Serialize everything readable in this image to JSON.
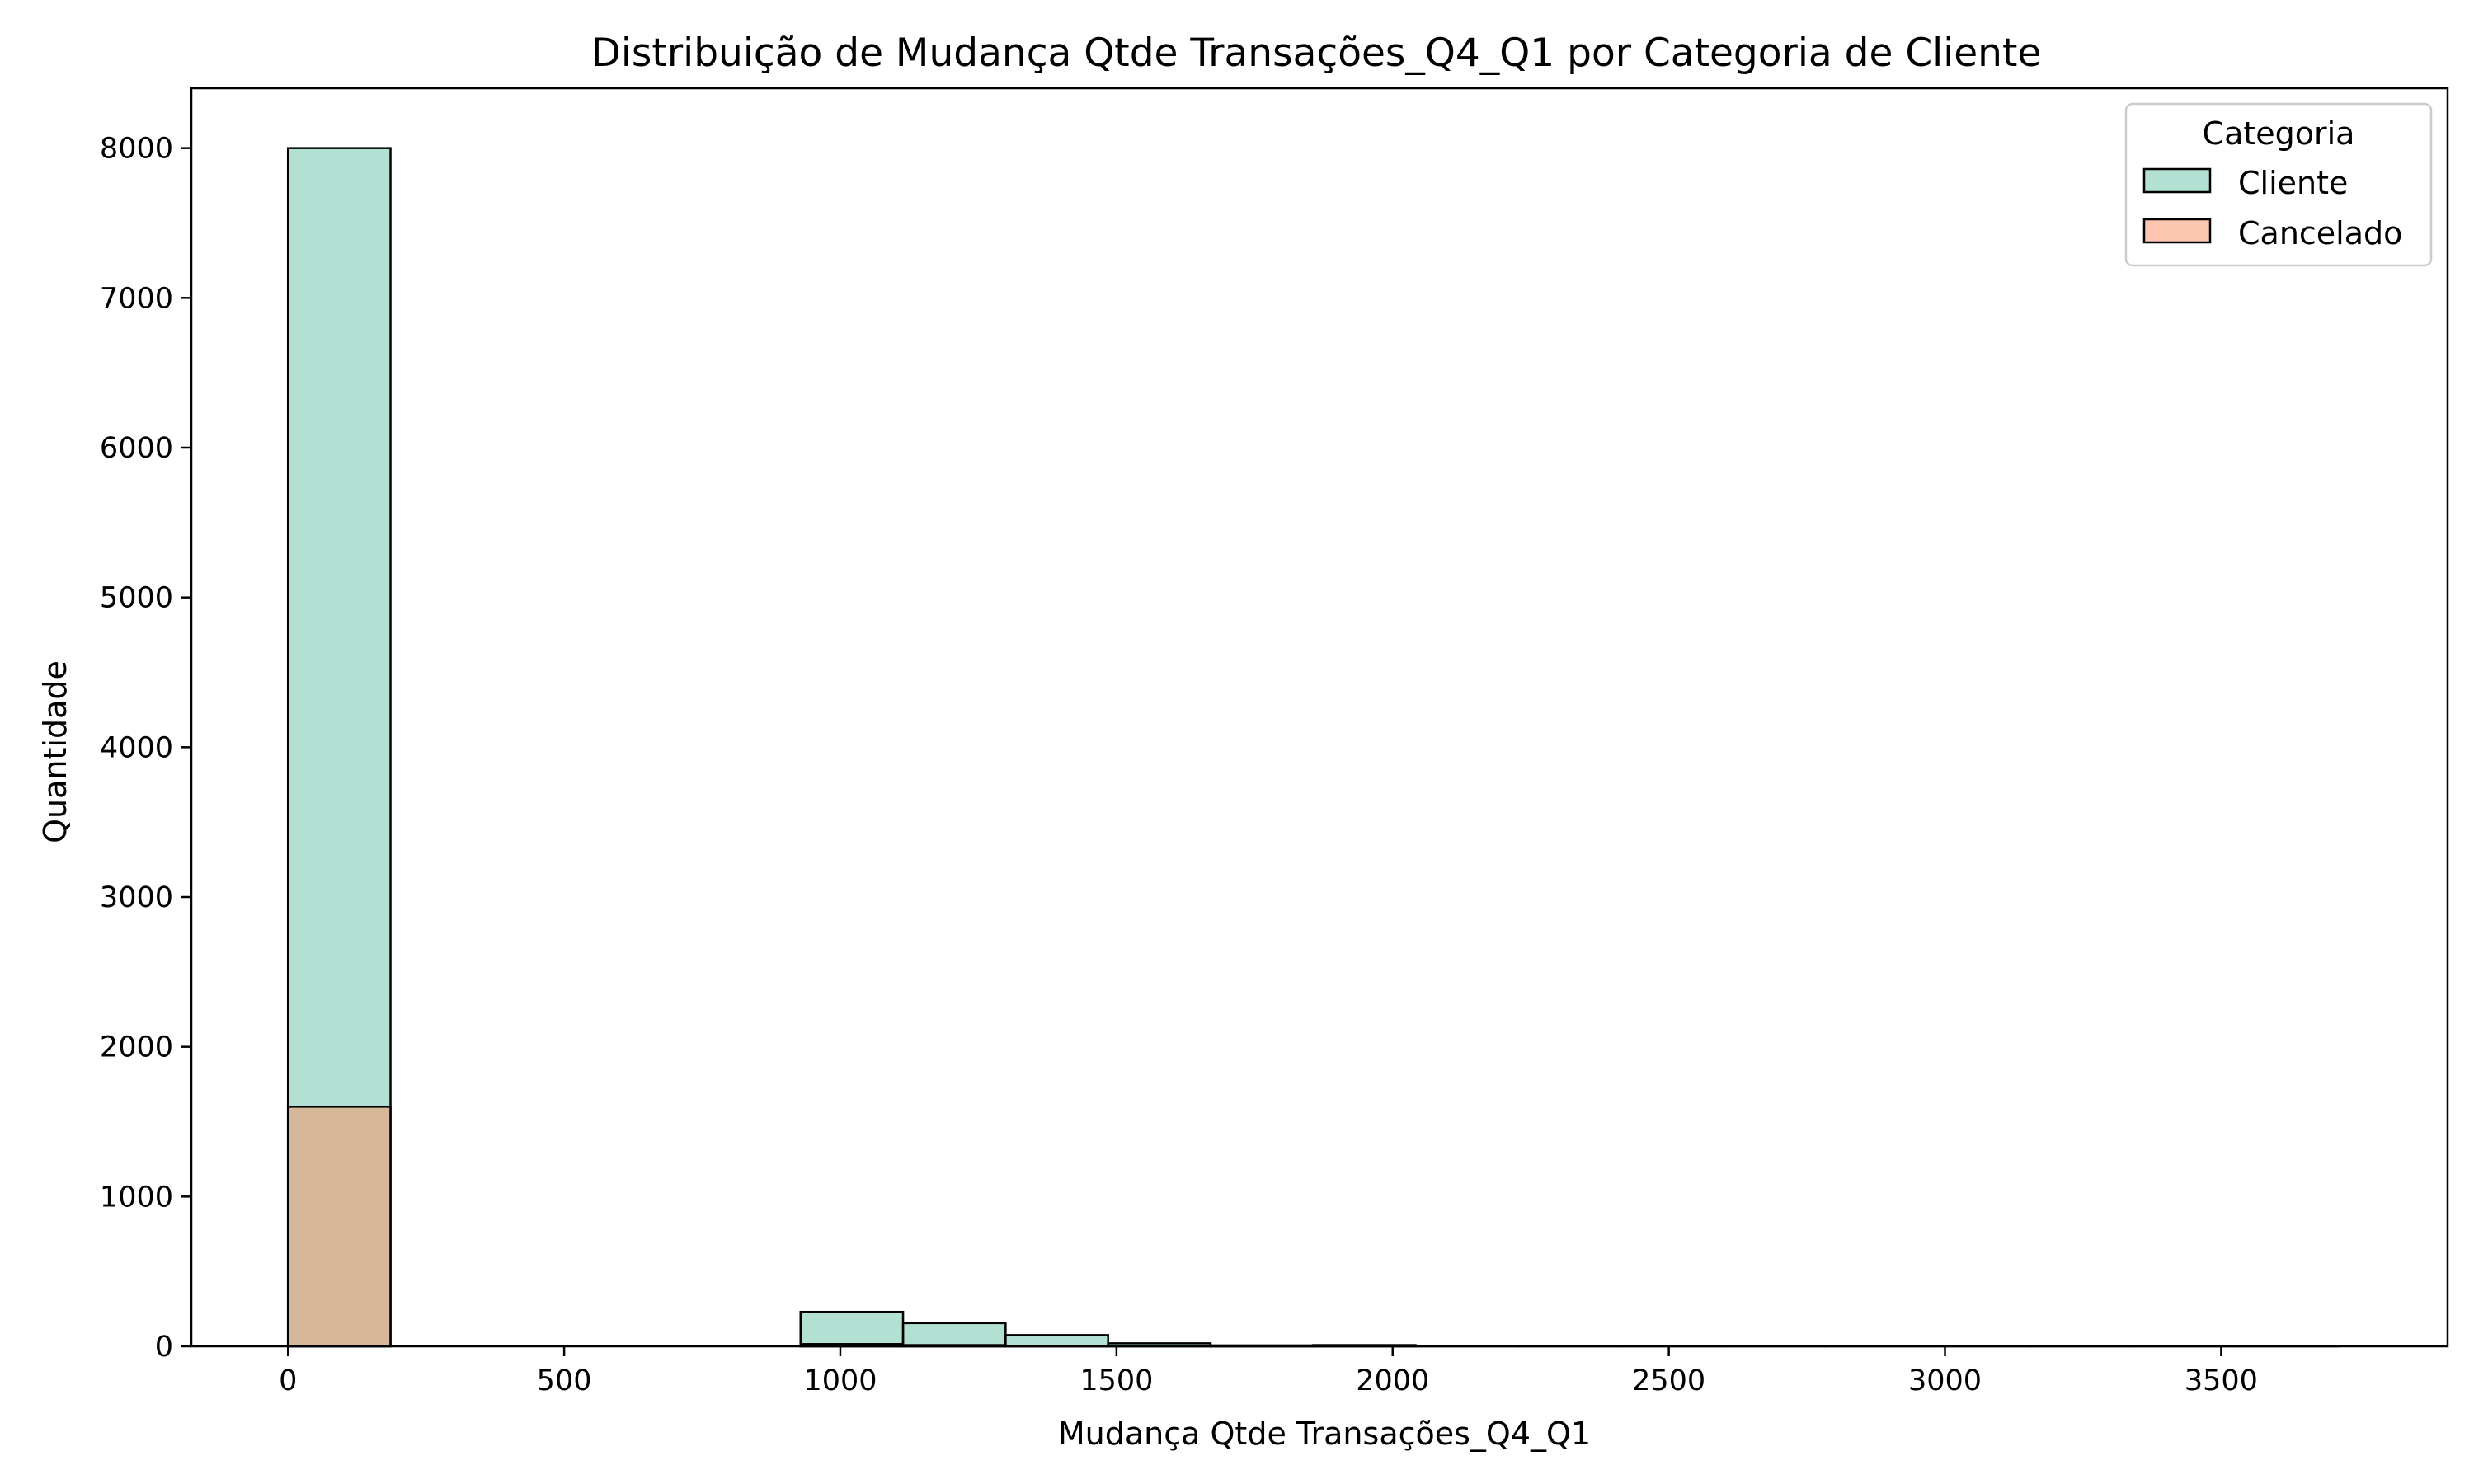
{
  "chart_data": {
    "type": "bar",
    "title": "Distribuição de Mudança Qtde Transações_Q4_Q1 por Categoria de Cliente",
    "xlabel": "Mudança Qtde Transações_Q4_Q1",
    "ylabel": "Quantidade",
    "xlim": [
      -175,
      3910
    ],
    "ylim": [
      0,
      8400
    ],
    "xticks": [
      0,
      500,
      1000,
      1500,
      2000,
      2500,
      3000,
      3500
    ],
    "yticks": [
      0,
      1000,
      2000,
      3000,
      4000,
      5000,
      6000,
      7000,
      8000
    ],
    "grid": false,
    "legend": {
      "title": "Categoria",
      "placement": "top-right",
      "entries": [
        "Cliente",
        "Cancelado"
      ]
    },
    "bin_edges": [
      0,
      185.6,
      371.2,
      556.8,
      742.4,
      928,
      1113.6,
      1299.2,
      1484.8,
      1670.4,
      1856,
      2041.6,
      2227.2,
      2412.8,
      2598.4,
      2784,
      2969.6,
      3155.2,
      3340.8,
      3526.4,
      3712
    ],
    "series": [
      {
        "name": "Cliente",
        "color": "#66c2a5",
        "values": [
          8000,
          0,
          0,
          0,
          0,
          230,
          155,
          75,
          20,
          6,
          8,
          3,
          2,
          2,
          1,
          1,
          1,
          1,
          1,
          3
        ]
      },
      {
        "name": "Cancelado",
        "color": "#fc8d62",
        "values": [
          1600,
          0,
          0,
          0,
          0,
          15,
          8,
          4,
          2,
          1,
          1,
          0,
          0,
          0,
          0,
          0,
          0,
          0,
          0,
          0
        ]
      }
    ]
  }
}
